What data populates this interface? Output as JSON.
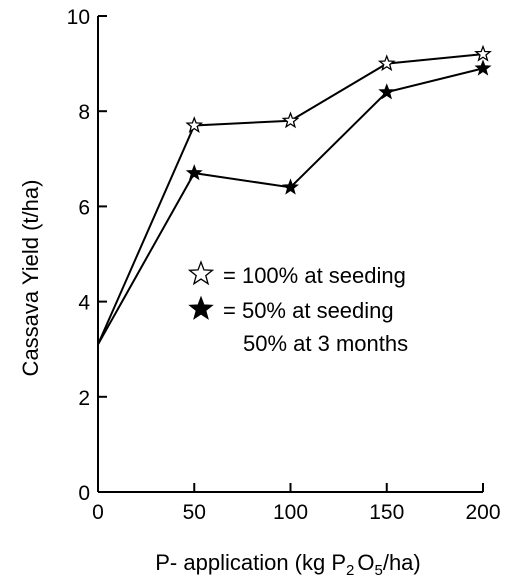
{
  "chart_data": {
    "type": "line",
    "xlabel_main": "P- application (kg P",
    "xlabel_sub1": "2",
    "xlabel_mid": "O",
    "xlabel_sub2": "5",
    "xlabel_end": "/ha)",
    "ylabel": "Cassava Yield (t/ha)",
    "xlim": [
      0,
      200
    ],
    "ylim": [
      0,
      10
    ],
    "x_ticks": [
      0,
      50,
      100,
      150,
      200
    ],
    "y_ticks": [
      0,
      2,
      4,
      6,
      8,
      10
    ],
    "legend": {
      "placement": "center-right",
      "entries": [
        {
          "marker": "open-star",
          "text": "= 100% at seeding"
        },
        {
          "marker": "filled-star",
          "text": "= 50% at seeding",
          "text2": "50% at 3 months"
        }
      ]
    },
    "series": [
      {
        "marker": "open-star",
        "x": [
          0,
          50,
          100,
          150,
          200
        ],
        "y": [
          3.1,
          7.7,
          7.8,
          9.0,
          9.2
        ]
      },
      {
        "marker": "filled-star",
        "x": [
          0,
          50,
          100,
          150,
          200
        ],
        "y": [
          3.1,
          6.7,
          6.4,
          8.4,
          8.9
        ]
      }
    ]
  }
}
